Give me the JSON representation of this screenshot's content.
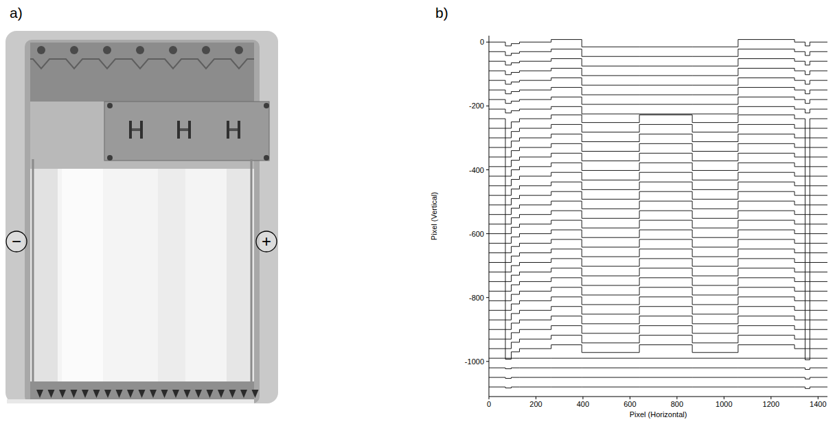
{
  "figure": {
    "photo": {
      "label": "a)",
      "electrodes": [
        "−",
        "+"
      ]
    }
  },
  "chart_data": {
    "type": "line",
    "panel_label": "b)",
    "line_style": "steps",
    "color": "#000000",
    "x_label": "Pixel (Horizontal)",
    "y_label": "Pixel (Vertical)",
    "xlim": [
      0,
      1440
    ],
    "ylim": [
      -1110,
      20
    ],
    "xticks": [
      0,
      200,
      400,
      600,
      800,
      1000,
      1200,
      1400
    ],
    "yticks": [
      0,
      -200,
      -400,
      -600,
      -800,
      -1000
    ],
    "grid": false,
    "x": [
      0,
      70,
      95,
      130,
      265,
      395,
      640,
      865,
      1060,
      1300,
      1345,
      1365,
      1440
    ],
    "series": [
      {
        "values": [
          0,
          -12,
          -5,
          0,
          8,
          -15,
          -15,
          -15,
          8,
          0,
          -12,
          0,
          0
        ]
      },
      {
        "values": [
          -30,
          -42,
          -35,
          -30,
          -22,
          -45,
          -45,
          -45,
          -22,
          -30,
          -42,
          -30,
          -30
        ]
      },
      {
        "values": [
          -60,
          -72,
          -65,
          -60,
          -52,
          -75,
          -75,
          -75,
          -52,
          -60,
          -72,
          -60,
          -60
        ]
      },
      {
        "values": [
          -90,
          -102,
          -95,
          -90,
          -82,
          -105,
          -105,
          -105,
          -82,
          -90,
          -102,
          -90,
          -90
        ]
      },
      {
        "values": [
          -120,
          -132,
          -125,
          -120,
          -112,
          -135,
          -135,
          -135,
          -112,
          -120,
          -132,
          -120,
          -120
        ]
      },
      {
        "values": [
          -150,
          -162,
          -155,
          -150,
          -142,
          -165,
          -165,
          -165,
          -142,
          -150,
          -162,
          -150,
          -150
        ]
      },
      {
        "values": [
          -180,
          -192,
          -185,
          -180,
          -172,
          -195,
          -195,
          -195,
          -172,
          -180,
          -192,
          -180,
          -180
        ]
      },
      {
        "values": [
          -210,
          -222,
          -215,
          -210,
          -202,
          -225,
          -225,
          -225,
          -202,
          -210,
          -222,
          -210,
          -210
        ]
      },
      {
        "values": [
          -240,
          -270,
          -250,
          -240,
          -228,
          -252,
          -228,
          -252,
          -228,
          -240,
          -270,
          -240,
          -240
        ]
      },
      {
        "values": [
          -270,
          -300,
          -280,
          -270,
          -258,
          -282,
          -258,
          -282,
          -258,
          -270,
          -300,
          -270,
          -270
        ]
      },
      {
        "values": [
          -300,
          -330,
          -310,
          -300,
          -288,
          -312,
          -288,
          -312,
          -288,
          -300,
          -330,
          -300,
          -300
        ]
      },
      {
        "values": [
          -330,
          -360,
          -340,
          -330,
          -318,
          -342,
          -318,
          -342,
          -318,
          -330,
          -360,
          -330,
          -330
        ]
      },
      {
        "values": [
          -360,
          -390,
          -370,
          -360,
          -348,
          -372,
          -348,
          -372,
          -348,
          -360,
          -390,
          -360,
          -360
        ]
      },
      {
        "values": [
          -390,
          -420,
          -400,
          -390,
          -378,
          -402,
          -378,
          -402,
          -378,
          -390,
          -420,
          -390,
          -390
        ]
      },
      {
        "values": [
          -420,
          -450,
          -430,
          -420,
          -408,
          -432,
          -408,
          -432,
          -408,
          -420,
          -450,
          -420,
          -420
        ]
      },
      {
        "values": [
          -450,
          -480,
          -460,
          -450,
          -438,
          -462,
          -438,
          -462,
          -438,
          -450,
          -480,
          -450,
          -450
        ]
      },
      {
        "values": [
          -480,
          -510,
          -490,
          -480,
          -468,
          -492,
          -468,
          -492,
          -468,
          -480,
          -510,
          -480,
          -480
        ]
      },
      {
        "values": [
          -510,
          -540,
          -520,
          -510,
          -498,
          -522,
          -498,
          -522,
          -498,
          -510,
          -540,
          -510,
          -510
        ]
      },
      {
        "values": [
          -540,
          -570,
          -550,
          -540,
          -528,
          -552,
          -528,
          -552,
          -528,
          -540,
          -570,
          -540,
          -540
        ]
      },
      {
        "values": [
          -570,
          -600,
          -580,
          -570,
          -558,
          -582,
          -558,
          -582,
          -558,
          -570,
          -600,
          -570,
          -570
        ]
      },
      {
        "values": [
          -600,
          -630,
          -610,
          -600,
          -588,
          -612,
          -588,
          -612,
          -588,
          -600,
          -630,
          -600,
          -600
        ]
      },
      {
        "values": [
          -630,
          -660,
          -640,
          -630,
          -618,
          -642,
          -618,
          -642,
          -618,
          -630,
          -660,
          -630,
          -630
        ]
      },
      {
        "values": [
          -660,
          -690,
          -670,
          -660,
          -648,
          -672,
          -648,
          -672,
          -648,
          -660,
          -690,
          -660,
          -660
        ]
      },
      {
        "values": [
          -690,
          -720,
          -700,
          -690,
          -678,
          -702,
          -678,
          -702,
          -678,
          -690,
          -720,
          -690,
          -690
        ]
      },
      {
        "values": [
          -720,
          -750,
          -730,
          -720,
          -708,
          -732,
          -708,
          -732,
          -708,
          -720,
          -750,
          -720,
          -720
        ]
      },
      {
        "values": [
          -750,
          -780,
          -760,
          -750,
          -738,
          -762,
          -738,
          -762,
          -738,
          -750,
          -780,
          -750,
          -750
        ]
      },
      {
        "values": [
          -780,
          -810,
          -790,
          -780,
          -768,
          -792,
          -768,
          -792,
          -768,
          -780,
          -810,
          -780,
          -780
        ]
      },
      {
        "values": [
          -810,
          -840,
          -820,
          -810,
          -798,
          -822,
          -798,
          -822,
          -798,
          -810,
          -840,
          -810,
          -810
        ]
      },
      {
        "values": [
          -840,
          -870,
          -850,
          -840,
          -828,
          -852,
          -828,
          -852,
          -828,
          -840,
          -870,
          -840,
          -840
        ]
      },
      {
        "values": [
          -870,
          -900,
          -880,
          -870,
          -858,
          -882,
          -858,
          -882,
          -858,
          -870,
          -900,
          -870,
          -870
        ]
      },
      {
        "values": [
          -900,
          -930,
          -910,
          -900,
          -888,
          -912,
          -888,
          -912,
          -888,
          -900,
          -930,
          -900,
          -900
        ]
      },
      {
        "values": [
          -930,
          -960,
          -940,
          -930,
          -918,
          -942,
          -918,
          -942,
          -918,
          -930,
          -960,
          -930,
          -930
        ]
      },
      {
        "values": [
          -960,
          -990,
          -970,
          -960,
          -948,
          -972,
          -948,
          -972,
          -948,
          -960,
          -990,
          -960,
          -960
        ]
      },
      {
        "values": [
          -990,
          -993,
          -990,
          -990,
          -990,
          -990,
          -990,
          -990,
          -990,
          -990,
          -995,
          -990,
          -990
        ]
      },
      {
        "values": [
          -1020,
          -1023,
          -1020,
          -1020,
          -1020,
          -1020,
          -1020,
          -1020,
          -1020,
          -1020,
          -1025,
          -1020,
          -1020
        ]
      },
      {
        "values": [
          -1050,
          -1053,
          -1050,
          -1050,
          -1050,
          -1050,
          -1050,
          -1050,
          -1050,
          -1050,
          -1055,
          -1050,
          -1050
        ]
      },
      {
        "values": [
          -1080,
          -1083,
          -1080,
          -1080,
          -1080,
          -1080,
          -1080,
          -1080,
          -1080,
          -1080,
          -1085,
          -1080,
          -1080
        ]
      }
    ]
  }
}
